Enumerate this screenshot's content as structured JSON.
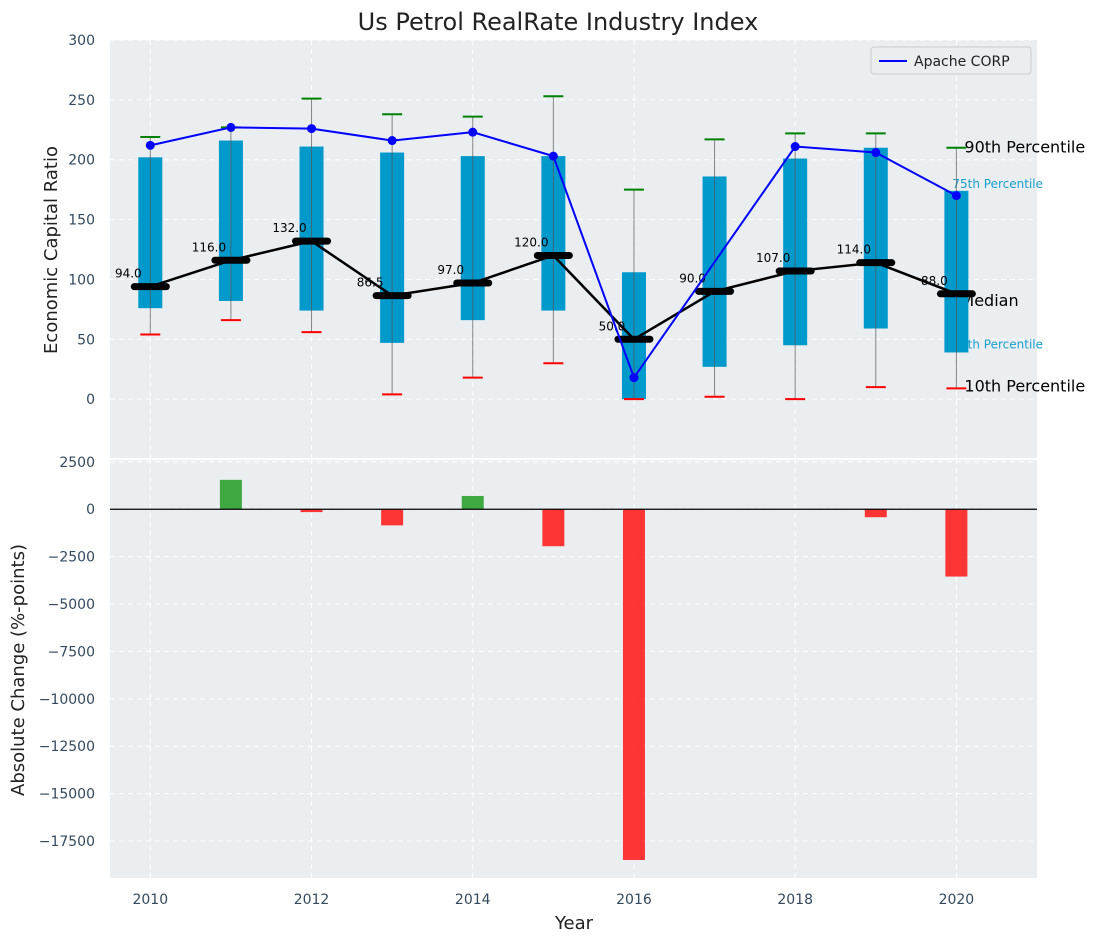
{
  "chart_data": [
    {
      "type": "bar",
      "subtype": "percentile-box-with-lines",
      "title": "Us Petrol RealRate Industry Index",
      "xlabel": "",
      "ylabel": "Economic Capital Ratio",
      "xlim": [
        2009.5,
        2021
      ],
      "ylim": [
        -50,
        300
      ],
      "yticks": [
        0,
        50,
        100,
        150,
        200,
        250,
        300
      ],
      "grid": true,
      "x": [
        2010,
        2011,
        2012,
        2013,
        2014,
        2015,
        2016,
        2017,
        2018,
        2019,
        2020
      ],
      "p10": [
        54,
        66,
        56,
        4,
        18,
        30,
        0,
        2,
        0,
        10,
        9
      ],
      "p25": [
        76,
        82,
        74,
        47,
        66,
        74,
        0,
        27,
        45,
        59,
        39
      ],
      "median": [
        94.0,
        116.0,
        132.0,
        86.5,
        97.0,
        120.0,
        50.0,
        90.0,
        107.0,
        114.0,
        88.0
      ],
      "median_labels": [
        "94.0",
        "116.0",
        "132.0",
        "86.5",
        "97.0",
        "120.0",
        "50.0",
        "90.0",
        "107.0",
        "114.0",
        "88.0"
      ],
      "p75": [
        202,
        216,
        211,
        206,
        203,
        203,
        106,
        186,
        201,
        210,
        174
      ],
      "p90": [
        219,
        227,
        251,
        238,
        236,
        253,
        175,
        217,
        222,
        222,
        210
      ],
      "series": [
        {
          "name": "Apache CORP",
          "values": [
            212,
            227,
            226,
            216,
            223,
            203,
            18,
            null,
            211,
            206,
            170
          ],
          "color": "#0000ff"
        }
      ],
      "legend": {
        "position": "top-right",
        "entries": [
          "Apache CORP"
        ]
      },
      "annotations": {
        "p90": "90th Percentile",
        "p75": "75th Percentile",
        "median": "Median",
        "p25": "25th Percentile",
        "p10": "10th Percentile"
      },
      "colors": {
        "box": "#0099cc",
        "median": "#000000",
        "p90": "#008000",
        "p10": "#ff0000",
        "label": "#1a9fcf"
      }
    },
    {
      "type": "bar",
      "title": "",
      "xlabel": "Year",
      "ylabel": "Absolute Change (%-points)",
      "xlim": [
        2009.5,
        2021
      ],
      "ylim": [
        -19450,
        2650
      ],
      "yticks": [
        2500,
        0,
        -2500,
        -5000,
        -7500,
        -10000,
        -12500,
        -15000,
        -17500
      ],
      "ytick_labels": [
        "2500",
        "0",
        "−2500",
        "−5000",
        "−7500",
        "−10000",
        "−12500",
        "−15000",
        "−17500"
      ],
      "xticks": [
        2010,
        2012,
        2014,
        2016,
        2018,
        2020
      ],
      "xtick_labels": [
        "2010",
        "2012",
        "2014",
        "2016",
        "2018",
        "2020"
      ],
      "x": [
        2010,
        2011,
        2012,
        2013,
        2014,
        2015,
        2016,
        2017,
        2018,
        2019,
        2020
      ],
      "values": [
        0,
        1550,
        -150,
        -850,
        700,
        -1950,
        -18500,
        0,
        0,
        -420,
        -3550
      ],
      "colors": {
        "positive": "#2ca02c",
        "negative": "#ff2020"
      }
    }
  ]
}
